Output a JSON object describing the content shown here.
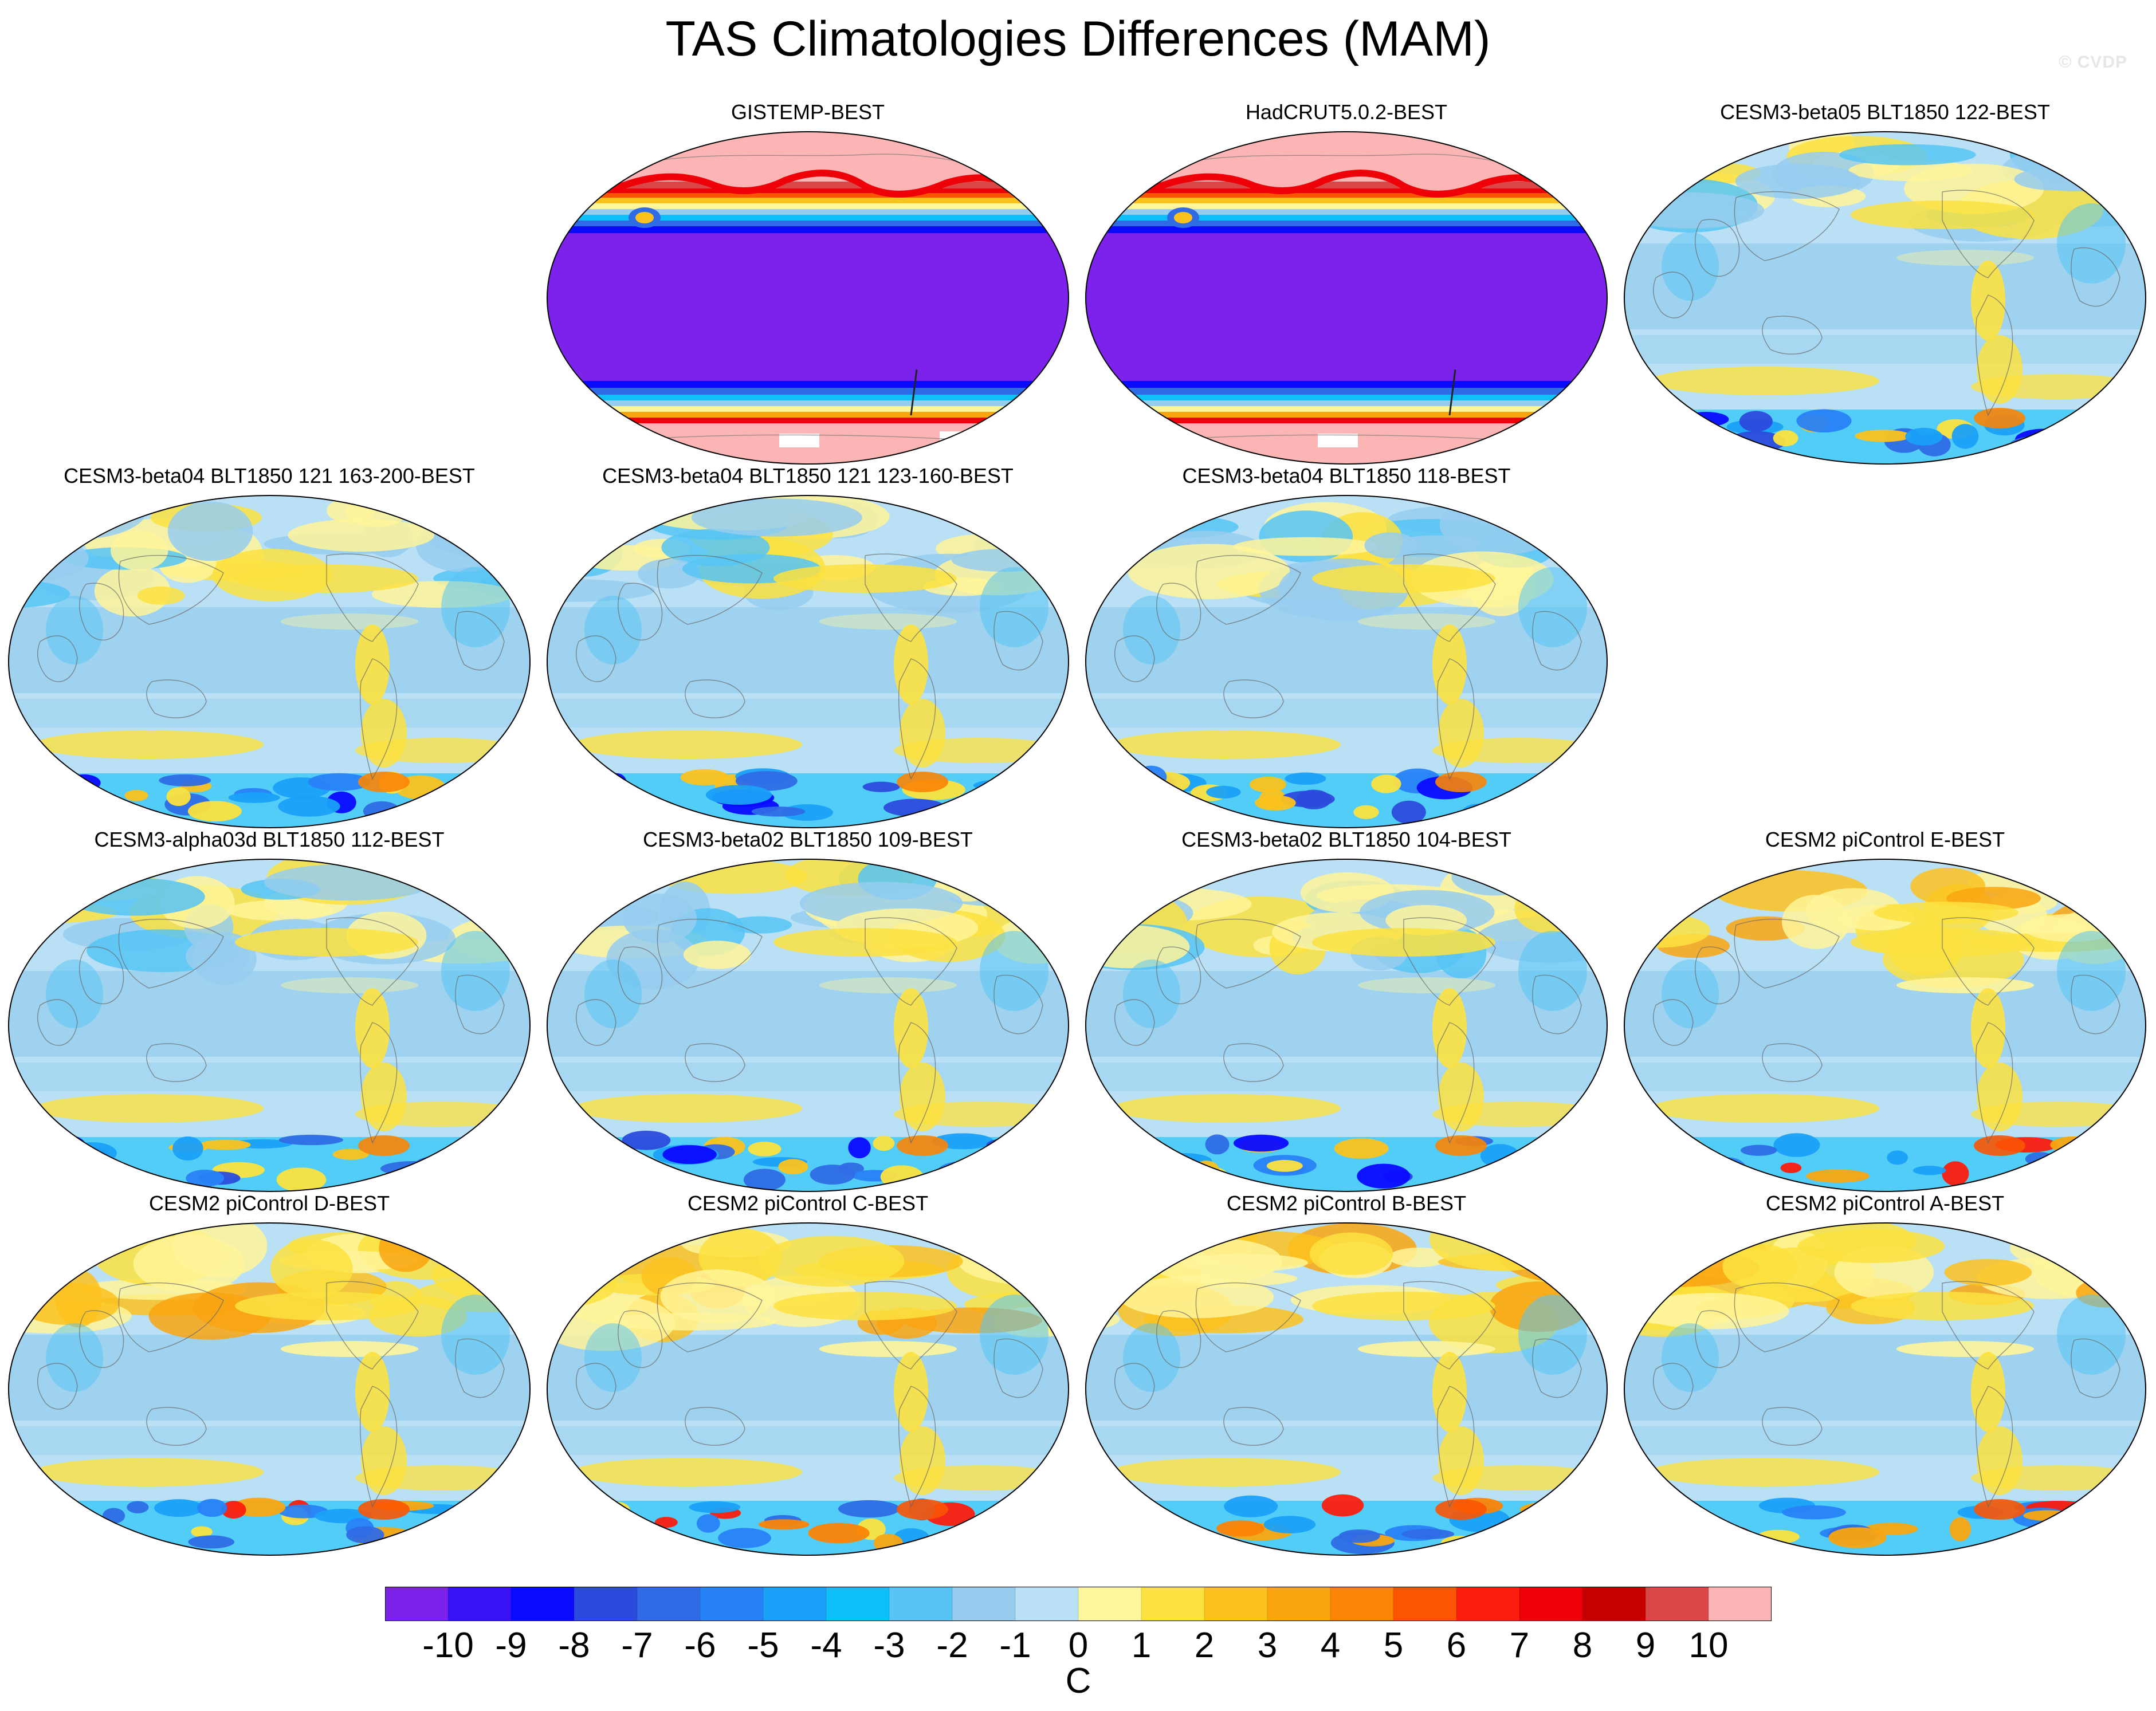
{
  "title": "TAS Climatologies Differences (MAM)",
  "watermark": "© CVDP",
  "chart_data": {
    "type": "heatmap",
    "title": "TAS Climatologies Differences (MAM)",
    "projection": "Robinson-like global map, Pacific-centered",
    "season": "MAM",
    "units": "C",
    "grid": false,
    "legend": "bottom",
    "colorbar": {
      "ticks": [
        -10,
        -9,
        -8,
        -7,
        -6,
        -5,
        -4,
        -3,
        -2,
        -1,
        0,
        1,
        2,
        3,
        4,
        5,
        6,
        7,
        8,
        9,
        10
      ],
      "colors": [
        "#7c22ea",
        "#3812f4",
        "#0a0aff",
        "#2b4bdc",
        "#2f6be5",
        "#2882f7",
        "#1aa0f8",
        "#0ec0f8",
        "#56c4f4",
        "#96cdee",
        "#b9e0f4",
        "#fff59a",
        "#fce23f",
        "#fbc21e",
        "#f9a510",
        "#fb8405",
        "#fb5503",
        "#fb1e0e",
        "#ed0008",
        "#c60000",
        "#db4646",
        "#fcb5b5"
      ]
    },
    "panels": [
      {
        "title": "GISTEMP-BEST",
        "pattern": "observational"
      },
      {
        "title": "HadCRUT5.0.2-BEST",
        "pattern": "observational"
      },
      {
        "title": "CESM3-beta05 BLT1850 122-BEST",
        "pattern": "model-cool"
      },
      {
        "title": "CESM3-beta04 BLT1850 121 163-200-BEST",
        "pattern": "model-cool"
      },
      {
        "title": "CESM3-beta04 BLT1850 121 123-160-BEST",
        "pattern": "model-cool"
      },
      {
        "title": "CESM3-beta04 BLT1850 118-BEST",
        "pattern": "model-cool"
      },
      {
        "title": "CESM3-alpha03d BLT1850 112-BEST",
        "pattern": "model-cool"
      },
      {
        "title": "CESM3-beta02 BLT1850 109-BEST",
        "pattern": "model-cool"
      },
      {
        "title": "CESM3-beta02 BLT1850 104-BEST",
        "pattern": "model-cool"
      },
      {
        "title": "CESM2 piControl E-BEST",
        "pattern": "model-warm"
      },
      {
        "title": "CESM2 piControl D-BEST",
        "pattern": "model-warm"
      },
      {
        "title": "CESM2 piControl C-BEST",
        "pattern": "model-warm"
      },
      {
        "title": "CESM2 piControl B-BEST",
        "pattern": "model-warm"
      },
      {
        "title": "CESM2 piControl A-BEST",
        "pattern": "model-warm"
      }
    ]
  }
}
